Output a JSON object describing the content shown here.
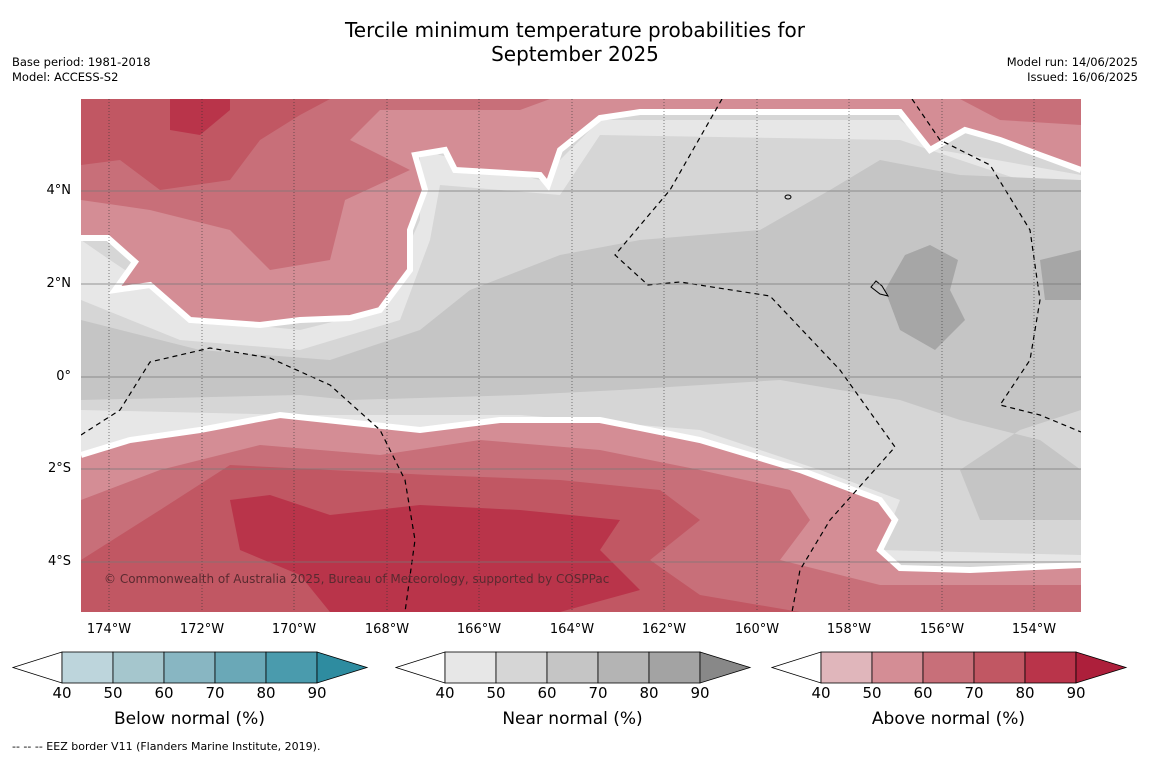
{
  "title": {
    "line1": "Tercile minimum temperature probabilities for",
    "line2": "September 2025"
  },
  "meta": {
    "base_period": "Base period: 1981-2018",
    "model": "Model: ACCESS-S2",
    "model_run": "Model run: 14/06/2025",
    "issued": "Issued: 16/06/2025"
  },
  "map": {
    "lat_labels": [
      "4°N",
      "2°N",
      "0°",
      "2°S",
      "4°S"
    ],
    "lon_labels": [
      "174°W",
      "172°W",
      "170°W",
      "168°W",
      "166°W",
      "164°W",
      "162°W",
      "160°W",
      "158°W",
      "156°W",
      "154°W"
    ],
    "copyright": "© Commonwealth of Australia 2025, Bureau of Meteorology, supported by COSPPac"
  },
  "legend": {
    "ticks": [
      "40",
      "50",
      "60",
      "70",
      "80",
      "90"
    ],
    "bars": [
      {
        "title": "Below normal (%)",
        "colors": [
          "#bdd5dc",
          "#a5c6cd",
          "#88b6c2",
          "#6aa8b7",
          "#4a9bad"
        ],
        "arrow": "#2e8ca0"
      },
      {
        "title": "Near normal (%)",
        "colors": [
          "#e7e7e7",
          "#d6d6d6",
          "#c5c5c5",
          "#b4b4b4",
          "#a3a3a3"
        ],
        "arrow": "#888888"
      },
      {
        "title": "Above normal (%)",
        "colors": [
          "#e0b6bb",
          "#d48d95",
          "#c86f79",
          "#c15763",
          "#b9344a"
        ],
        "arrow": "#ad1f3b"
      }
    ]
  },
  "footnote": "--  --  -- EEZ border V11 (Flanders Marine Institute, 2019)."
}
